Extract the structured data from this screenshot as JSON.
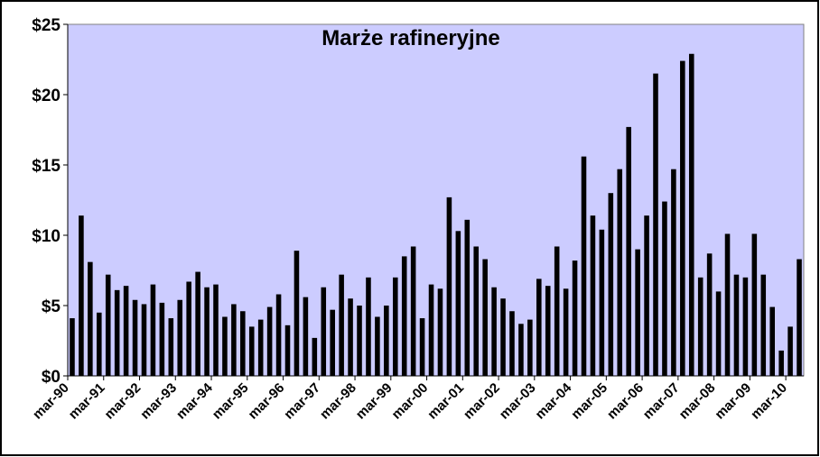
{
  "chart_data": {
    "type": "bar",
    "title": "Marże rafineryjne",
    "categories": [
      "mar-90",
      null,
      null,
      null,
      "mar-91",
      null,
      null,
      null,
      "mar-92",
      null,
      null,
      null,
      "mar-93",
      null,
      null,
      null,
      "mar-94",
      null,
      null,
      null,
      "mar-95",
      null,
      null,
      null,
      "mar-96",
      null,
      null,
      null,
      "mar-97",
      null,
      null,
      null,
      "mar-98",
      null,
      null,
      null,
      "mar-99",
      null,
      null,
      null,
      "mar-00",
      null,
      null,
      null,
      "mar-01",
      null,
      null,
      null,
      "mar-02",
      null,
      null,
      null,
      "mar-03",
      null,
      null,
      null,
      "mar-04",
      null,
      null,
      null,
      "mar-05",
      null,
      null,
      null,
      "mar-06",
      null,
      null,
      null,
      "mar-07",
      null,
      null,
      null,
      "mar-08",
      null,
      null,
      null,
      "mar-09",
      null,
      null,
      null,
      "mar-10",
      null
    ],
    "values": [
      4.1,
      11.4,
      8.1,
      4.5,
      7.2,
      6.1,
      6.4,
      5.4,
      5.1,
      6.5,
      5.2,
      4.1,
      5.4,
      6.7,
      7.4,
      6.3,
      6.5,
      4.2,
      5.1,
      4.6,
      3.5,
      4.0,
      4.9,
      5.8,
      3.6,
      8.9,
      5.6,
      2.7,
      6.3,
      4.7,
      7.2,
      5.5,
      5.0,
      7.0,
      4.2,
      5.0,
      7.0,
      8.5,
      9.2,
      4.1,
      6.5,
      6.2,
      12.7,
      10.3,
      11.1,
      9.2,
      8.3,
      6.3,
      5.5,
      4.6,
      3.7,
      4.0,
      6.9,
      6.4,
      9.2,
      6.2,
      8.2,
      15.6,
      11.4,
      10.4,
      13.0,
      14.7,
      17.7,
      9.0,
      11.4,
      21.5,
      12.4,
      14.7,
      22.4,
      22.9,
      7.0,
      8.7,
      6.0,
      10.1,
      7.2,
      7.0,
      10.1,
      7.2,
      4.9,
      1.8,
      3.5,
      8.3
    ],
    "color": "#000000",
    "plot_background": "#ccccff",
    "ylim": [
      0,
      25
    ],
    "yticks": [
      {
        "value": 0,
        "label": "$0"
      },
      {
        "value": 5,
        "label": "$5"
      },
      {
        "value": 10,
        "label": "$10"
      },
      {
        "value": 15,
        "label": "$15"
      },
      {
        "value": 20,
        "label": "$20"
      },
      {
        "value": 25,
        "label": "$25"
      }
    ],
    "grid": false
  }
}
